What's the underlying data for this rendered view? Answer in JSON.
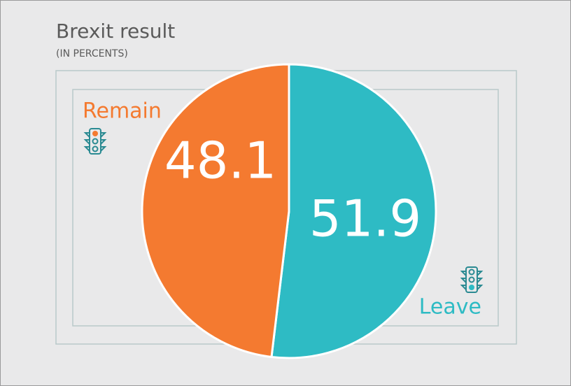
{
  "chart_data": {
    "type": "pie",
    "title": "Brexit result",
    "subtitle": "(IN PERCENTS)",
    "categories": [
      "Remain",
      "Leave"
    ],
    "values": [
      48.1,
      51.9
    ],
    "colors": [
      "#f47a30",
      "#2ebbc4"
    ]
  }
}
